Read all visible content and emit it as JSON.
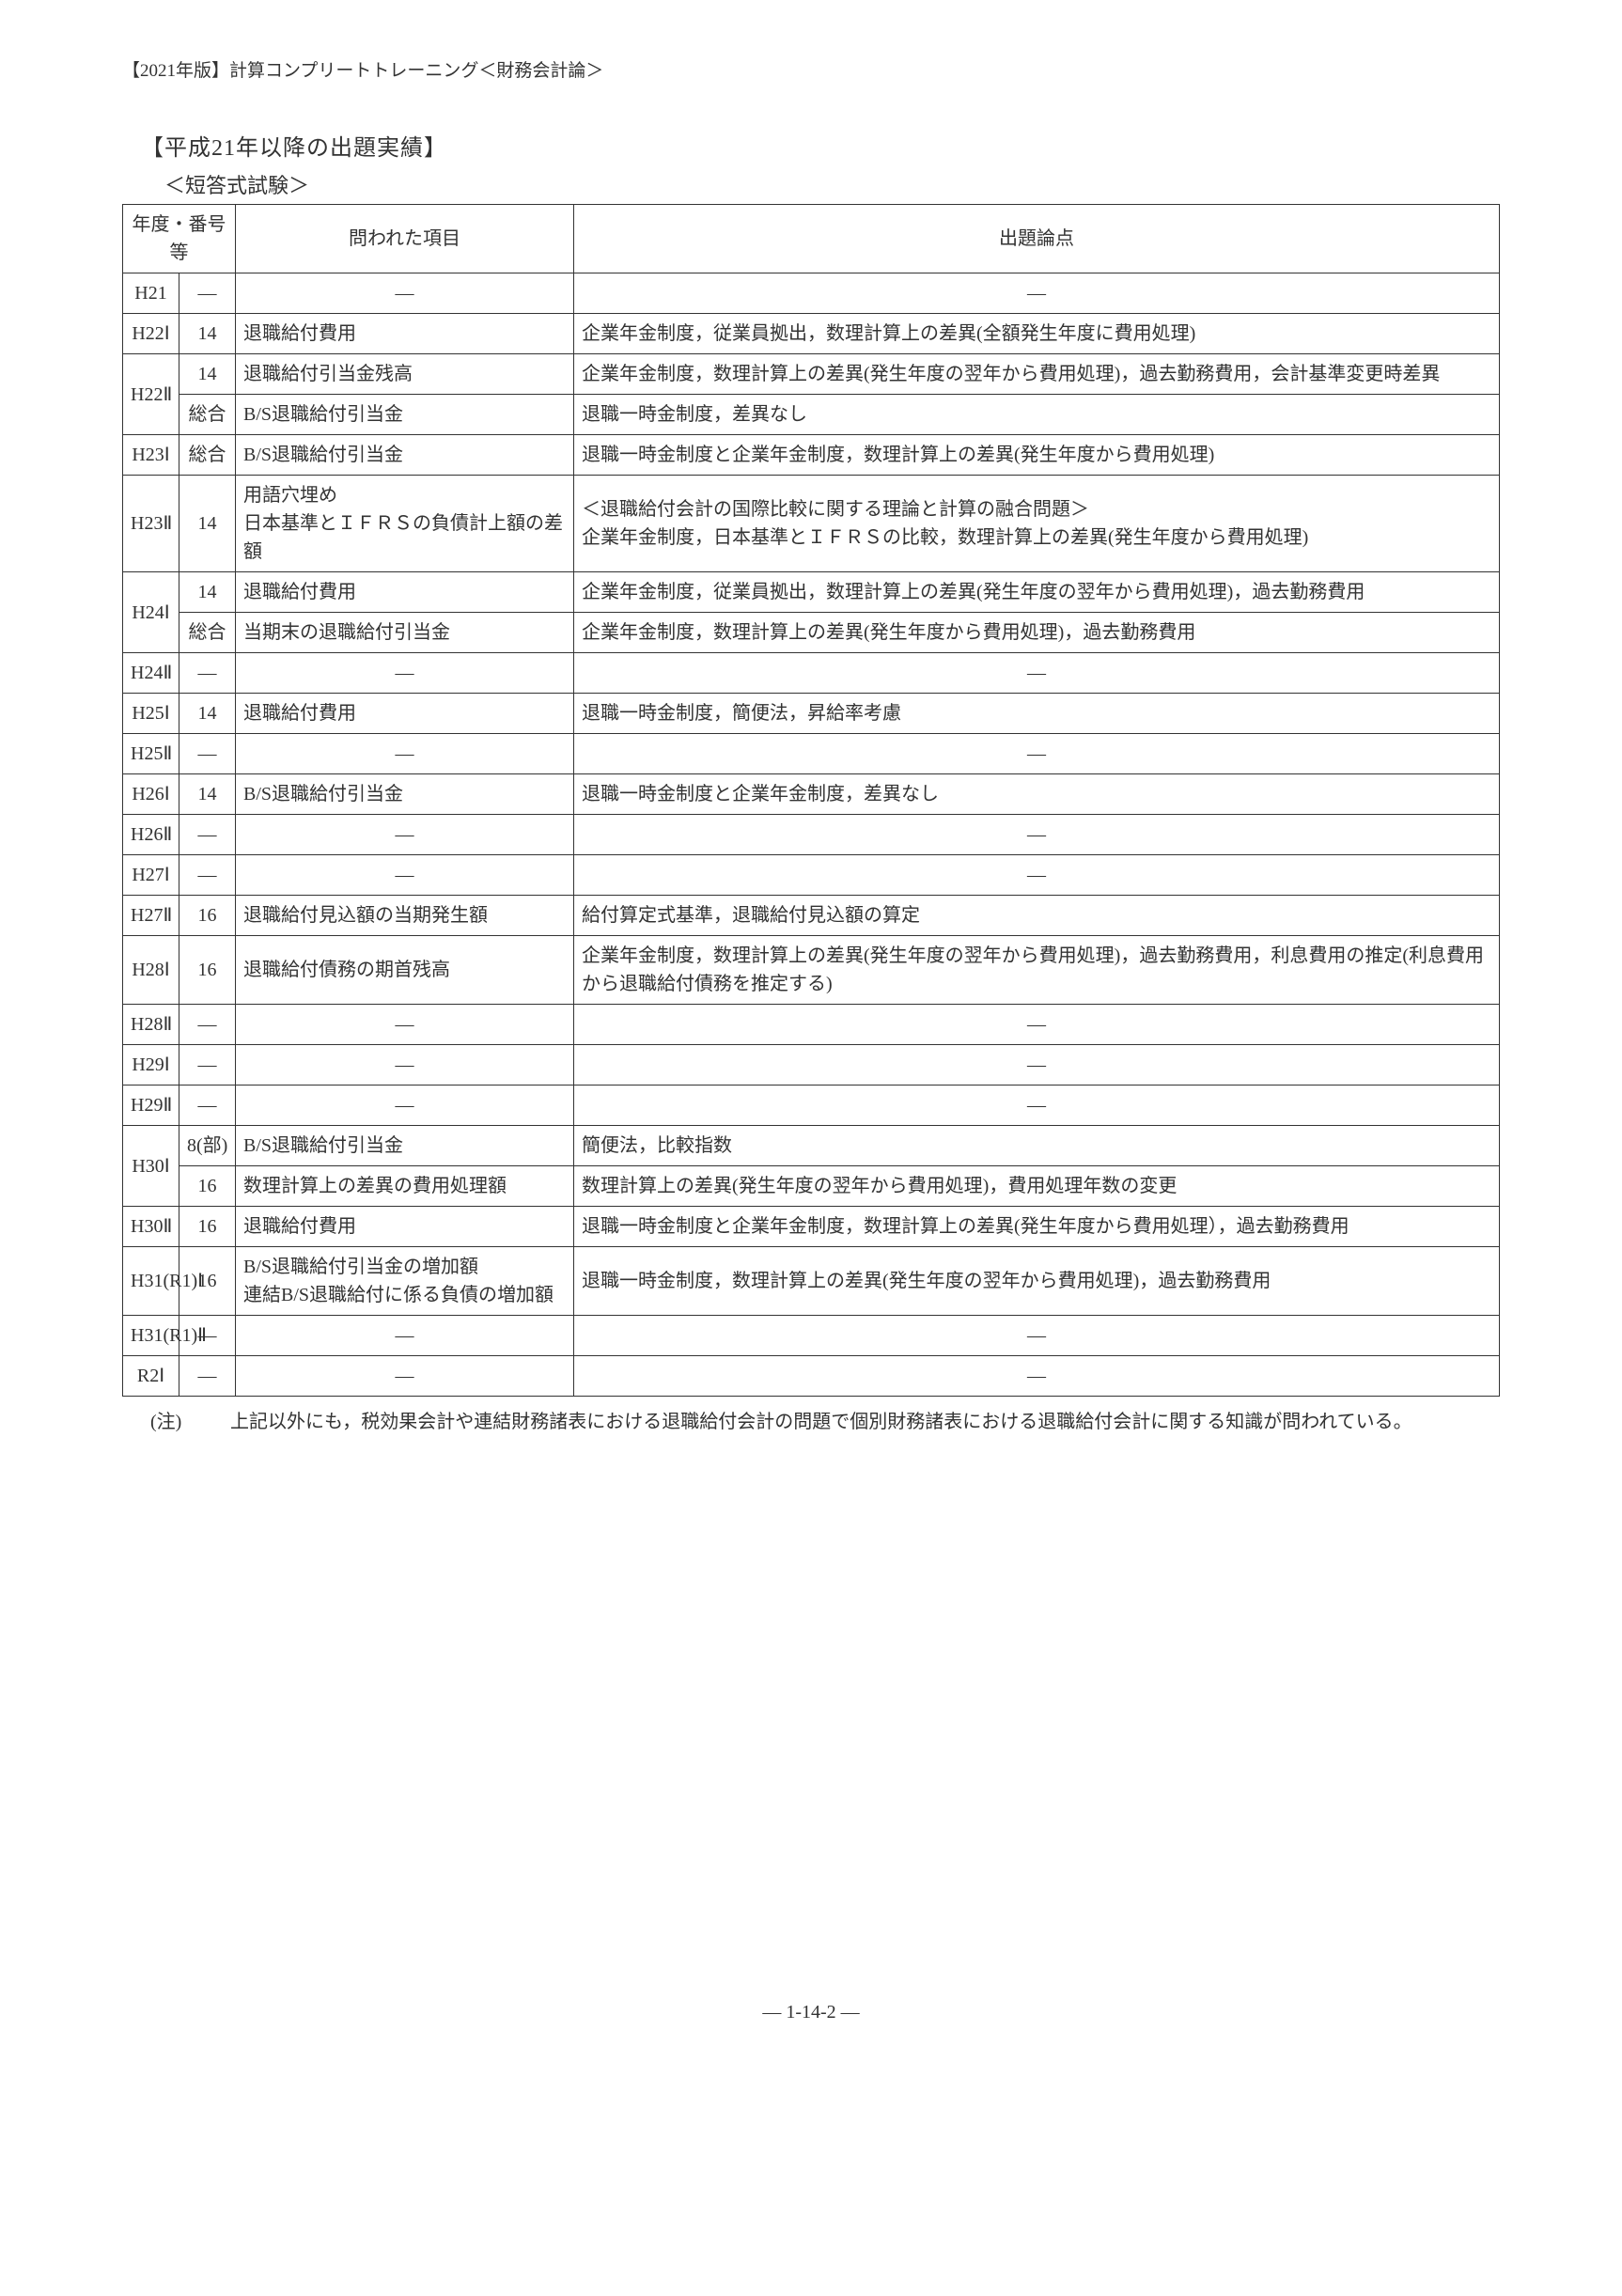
{
  "header": "【2021年版】計算コンプリートトレーニング＜財務会計論＞",
  "title": "【平成21年以降の出題実績】",
  "subtitle": "＜短答式試験＞",
  "columns": {
    "year": "年度・番号等",
    "item": "問われた項目",
    "topic": "出題論点"
  },
  "rows": [
    {
      "year": "H21",
      "num": "—",
      "item": "—",
      "topic": "—",
      "yearRowspan": 1
    },
    {
      "year": "H22Ⅰ",
      "num": "14",
      "item": "退職給付費用",
      "topic": "企業年金制度，従業員拠出，数理計算上の差異(全額発生年度に費用処理)",
      "yearRowspan": 1
    },
    {
      "year": "H22Ⅱ",
      "num": "14",
      "item": "退職給付引当金残高",
      "topic": "企業年金制度，数理計算上の差異(発生年度の翌年から費用処理)，過去勤務費用，会計基準変更時差異",
      "yearRowspan": 2
    },
    {
      "year": "",
      "num": "総合",
      "item": "B/S退職給付引当金",
      "topic": "退職一時金制度，差異なし"
    },
    {
      "year": "H23Ⅰ",
      "num": "総合",
      "item": "B/S退職給付引当金",
      "topic": "退職一時金制度と企業年金制度，数理計算上の差異(発生年度から費用処理)",
      "yearRowspan": 1
    },
    {
      "year": "H23Ⅱ",
      "num": "14",
      "item": "用語穴埋め\n日本基準とＩＦＲＳの負債計上額の差額",
      "topic": "＜退職給付会計の国際比較に関する理論と計算の融合問題＞\n企業年金制度，日本基準とＩＦＲＳの比較，数理計算上の差異(発生年度から費用処理)",
      "yearRowspan": 1
    },
    {
      "year": "H24Ⅰ",
      "num": "14",
      "item": "退職給付費用",
      "topic": "企業年金制度，従業員拠出，数理計算上の差異(発生年度の翌年から費用処理)，過去勤務費用",
      "yearRowspan": 2
    },
    {
      "year": "",
      "num": "総合",
      "item": "当期末の退職給付引当金",
      "topic": "企業年金制度，数理計算上の差異(発生年度から費用処理)，過去勤務費用"
    },
    {
      "year": "H24Ⅱ",
      "num": "—",
      "item": "—",
      "topic": "—",
      "yearRowspan": 1
    },
    {
      "year": "H25Ⅰ",
      "num": "14",
      "item": "退職給付費用",
      "topic": "退職一時金制度，簡便法，昇給率考慮",
      "yearRowspan": 1
    },
    {
      "year": "H25Ⅱ",
      "num": "—",
      "item": "—",
      "topic": "—",
      "yearRowspan": 1
    },
    {
      "year": "H26Ⅰ",
      "num": "14",
      "item": "B/S退職給付引当金",
      "topic": "退職一時金制度と企業年金制度，差異なし",
      "yearRowspan": 1
    },
    {
      "year": "H26Ⅱ",
      "num": "—",
      "item": "—",
      "topic": "—",
      "yearRowspan": 1
    },
    {
      "year": "H27Ⅰ",
      "num": "—",
      "item": "—",
      "topic": "—",
      "yearRowspan": 1
    },
    {
      "year": "H27Ⅱ",
      "num": "16",
      "item": "退職給付見込額の当期発生額",
      "topic": "給付算定式基準，退職給付見込額の算定",
      "yearRowspan": 1
    },
    {
      "year": "H28Ⅰ",
      "num": "16",
      "item": "退職給付債務の期首残高",
      "topic": "企業年金制度，数理計算上の差異(発生年度の翌年から費用処理)，過去勤務費用，利息費用の推定(利息費用から退職給付債務を推定する)",
      "yearRowspan": 1
    },
    {
      "year": "H28Ⅱ",
      "num": "—",
      "item": "—",
      "topic": "—",
      "yearRowspan": 1
    },
    {
      "year": "H29Ⅰ",
      "num": "—",
      "item": "—",
      "topic": "—",
      "yearRowspan": 1
    },
    {
      "year": "H29Ⅱ",
      "num": "—",
      "item": "—",
      "topic": "—",
      "yearRowspan": 1
    },
    {
      "year": "H30Ⅰ",
      "num": "8(部)",
      "item": "B/S退職給付引当金",
      "topic": "簡便法，比較指数",
      "yearRowspan": 2
    },
    {
      "year": "",
      "num": "16",
      "item": "数理計算上の差異の費用処理額",
      "topic": "数理計算上の差異(発生年度の翌年から費用処理)，費用処理年数の変更"
    },
    {
      "year": "H30Ⅱ",
      "num": "16",
      "item": "退職給付費用",
      "topic": "退職一時金制度と企業年金制度，数理計算上の差異(発生年度から費用処理），過去勤務費用",
      "yearRowspan": 1
    },
    {
      "year": "H31(R1)Ⅰ",
      "num": "16",
      "item": "B/S退職給付引当金の増加額\n連結B/S退職給付に係る負債の増加額",
      "topic": "退職一時金制度，数理計算上の差異(発生年度の翌年から費用処理)，過去勤務費用",
      "yearRowspan": 1
    },
    {
      "year": "H31(R1)Ⅱ",
      "num": "—",
      "item": "—",
      "topic": "—",
      "yearRowspan": 1
    },
    {
      "year": "R2Ⅰ",
      "num": "—",
      "item": "—",
      "topic": "—",
      "yearRowspan": 1
    }
  ],
  "note": {
    "label": "(注)",
    "body": "上記以外にも，税効果会計や連結財務諸表における退職給付会計の問題で個別財務諸表における退職給付会計に関する知識が問われている。"
  },
  "pageNum": "— 1-14-2 —"
}
